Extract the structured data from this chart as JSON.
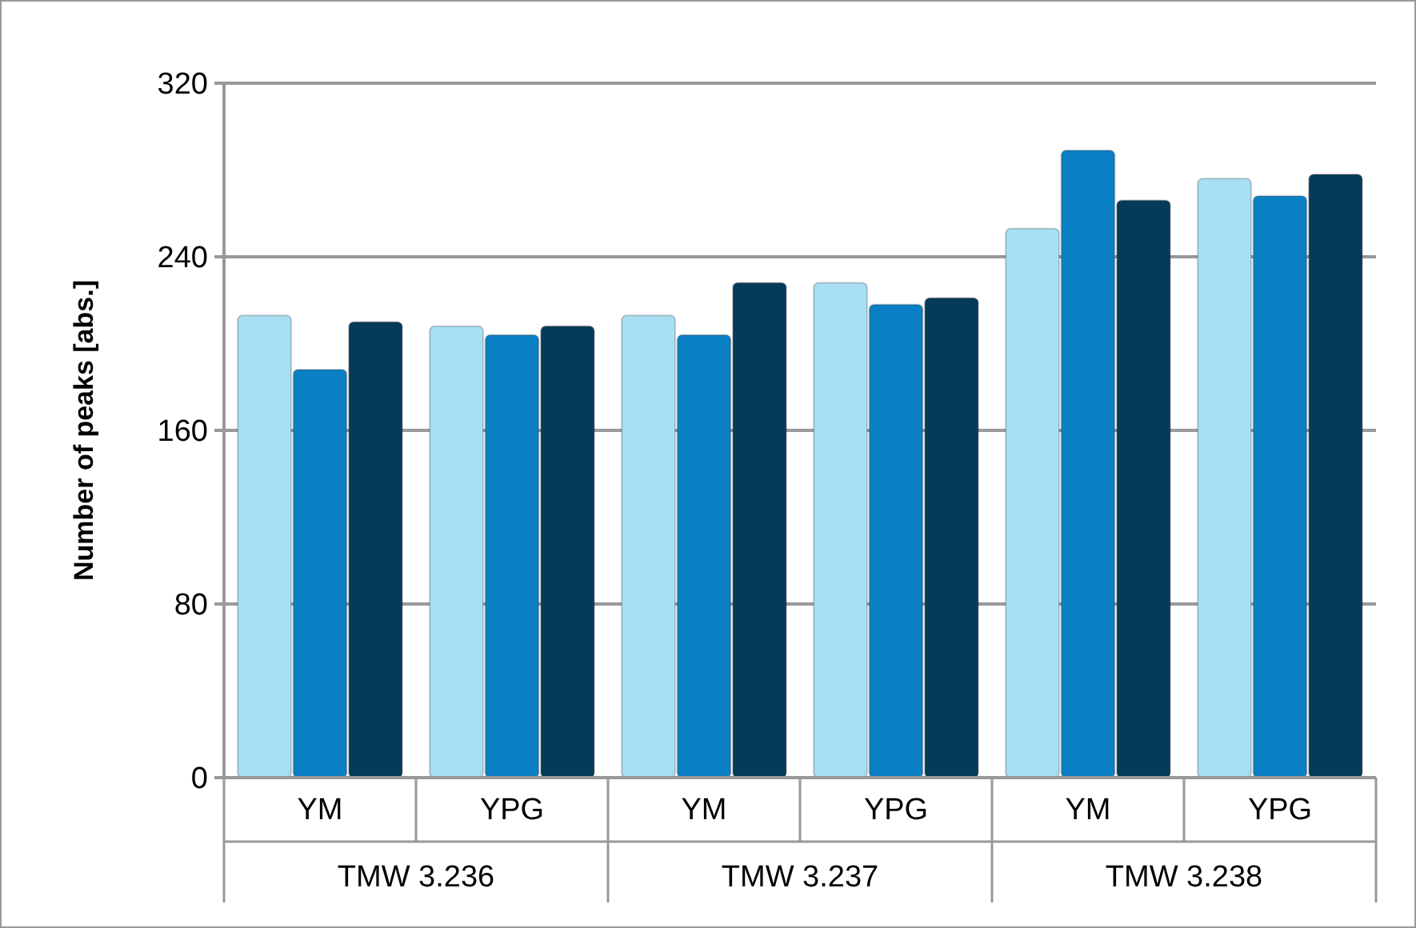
{
  "chart_data": {
    "type": "bar",
    "ylabel": "Number of peaks [abs.]",
    "categories": [
      "YM",
      "YPG",
      "YM",
      "YPG",
      "YM",
      "YPG"
    ],
    "series": [
      {
        "color": "#a8dff5",
        "values": [
          213,
          208,
          213,
          228,
          253,
          276
        ]
      },
      {
        "color": "#0a80c4",
        "values": [
          188,
          204,
          204,
          218,
          289,
          268
        ]
      },
      {
        "color": "#063a5a",
        "values": [
          210,
          208,
          228,
          221,
          266,
          278
        ]
      }
    ],
    "annotations": [
      "TMW 3.236",
      "TMW 3.237",
      "TMW 3.238"
    ],
    "ylim": [
      0,
      320
    ],
    "yticks": [
      0,
      80,
      160,
      240,
      320
    ],
    "grid": "y"
  }
}
